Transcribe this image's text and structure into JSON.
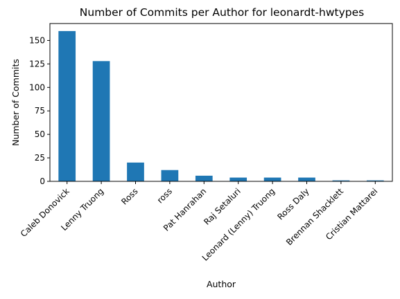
{
  "chart_data": {
    "type": "bar",
    "title": "Number of Commits per Author for leonardt-hwtypes",
    "xlabel": "Author",
    "ylabel": "Number of Commits",
    "categories": [
      "Caleb Donovick",
      "Lenny Truong",
      "Ross",
      "ross",
      "Pat Hanrahan",
      "Raj Setaluri",
      "Leonard (Lenny) Truong",
      "Ross Daly",
      "Brennan Shacklett",
      "Cristian Mattarei"
    ],
    "values": [
      160,
      128,
      20,
      12,
      6,
      4,
      4,
      4,
      1,
      1
    ],
    "ylim": [
      0,
      168
    ],
    "yticks": [
      0,
      25,
      50,
      75,
      100,
      125,
      150
    ],
    "bar_color": "#1f77b4",
    "grid": false,
    "legend": "none"
  }
}
